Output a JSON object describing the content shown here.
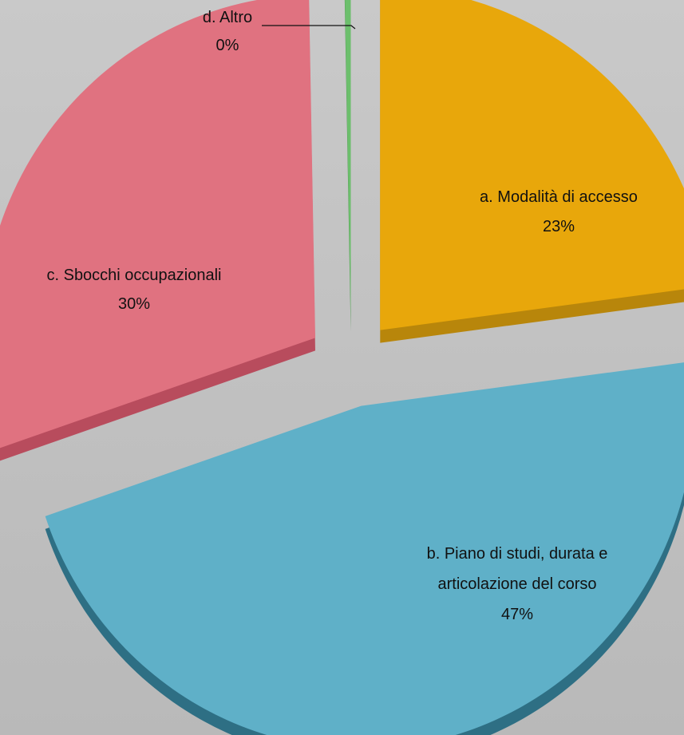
{
  "chart_data": {
    "type": "pie",
    "title": "",
    "slices": [
      {
        "label": "a. Modalità di accesso",
        "value": 23,
        "display": "23%",
        "color": "#e8a70b",
        "side": "#b8860b"
      },
      {
        "label": "b. Piano di studi, durata e articolazione del corso",
        "label_lines": [
          "b. Piano di studi, durata e",
          "articolazione del corso"
        ],
        "value": 47,
        "display": "47%",
        "color": "#5fb0c8",
        "side": "#2e6f84"
      },
      {
        "label": "c. Sbocchi occupazionali",
        "value": 30,
        "display": "30%",
        "color": "#e07280",
        "side": "#b84c5d"
      },
      {
        "label": "d. Altro",
        "value": 0.3,
        "display": "0%",
        "color": "#6cbf6c",
        "side": "#4a8f4a"
      }
    ],
    "exploded": true,
    "legend": "none"
  }
}
